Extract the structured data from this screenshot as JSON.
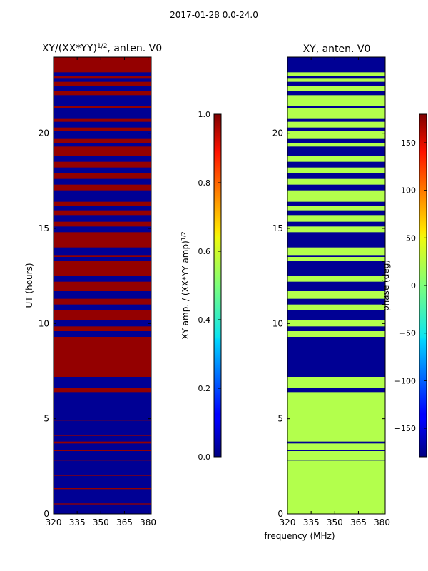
{
  "figure": {
    "suptitle": "2017-01-28 0.0-24.0",
    "xlabel": "frequency (MHz)"
  },
  "chart_data": [
    {
      "type": "heatmap",
      "title": "XY/(XX*YY)",
      "title_superscript": "1/2",
      "title_suffix": ", anten. V0",
      "ylabel": "UT (hours)",
      "xlim": [
        320,
        382
      ],
      "ylim": [
        0,
        24
      ],
      "xticks": [
        320,
        335,
        350,
        365,
        380
      ],
      "yticks": [
        0,
        5,
        10,
        15,
        20
      ],
      "colorbar": {
        "label": "XY amp. / (XX*YY amp)",
        "label_superscript": "1/2",
        "range": [
          0.0,
          1.0
        ],
        "ticks": [
          "0.0",
          "0.2",
          "0.4",
          "0.6",
          "0.8",
          "1.0"
        ],
        "colormap": "jet"
      },
      "background_value": 0.02,
      "bands": [
        {
          "from": 23.2,
          "to": 24.0,
          "value": 0.98
        },
        {
          "from": 22.9,
          "to": 23.0,
          "value": 0.98
        },
        {
          "from": 22.5,
          "to": 22.7,
          "value": 0.98
        },
        {
          "from": 22.0,
          "to": 22.2,
          "value": 0.98
        },
        {
          "from": 21.3,
          "to": 21.45,
          "value": 0.98
        },
        {
          "from": 20.6,
          "to": 20.75,
          "value": 0.98
        },
        {
          "from": 20.1,
          "to": 20.3,
          "value": 0.98
        },
        {
          "from": 19.5,
          "to": 19.7,
          "value": 0.98
        },
        {
          "from": 18.8,
          "to": 19.3,
          "value": 0.98
        },
        {
          "from": 18.2,
          "to": 18.5,
          "value": 0.98
        },
        {
          "from": 17.6,
          "to": 17.9,
          "value": 0.98
        },
        {
          "from": 17.0,
          "to": 17.3,
          "value": 0.98
        },
        {
          "from": 16.2,
          "to": 16.4,
          "value": 0.98
        },
        {
          "from": 15.7,
          "to": 15.95,
          "value": 0.98
        },
        {
          "from": 15.1,
          "to": 15.35,
          "value": 0.98
        },
        {
          "from": 14.0,
          "to": 14.8,
          "value": 0.98
        },
        {
          "from": 13.5,
          "to": 13.6,
          "value": 0.98
        },
        {
          "from": 12.5,
          "to": 13.3,
          "value": 0.98
        },
        {
          "from": 11.7,
          "to": 12.2,
          "value": 0.98
        },
        {
          "from": 11.0,
          "to": 11.3,
          "value": 0.98
        },
        {
          "from": 10.2,
          "to": 10.7,
          "value": 0.98
        },
        {
          "from": 9.6,
          "to": 9.85,
          "value": 0.98
        },
        {
          "from": 7.2,
          "to": 9.3,
          "value": 0.98
        },
        {
          "from": 6.4,
          "to": 6.6,
          "value": 0.98
        },
        {
          "from": 4.9,
          "to": 4.95,
          "value": 0.98
        },
        {
          "from": 4.1,
          "to": 4.15,
          "value": 0.98
        },
        {
          "from": 3.7,
          "to": 3.8,
          "value": 0.98
        },
        {
          "from": 3.3,
          "to": 3.35,
          "value": 0.98
        },
        {
          "from": 2.8,
          "to": 2.85,
          "value": 0.98
        },
        {
          "from": 2.0,
          "to": 2.05,
          "value": 0.98
        },
        {
          "from": 1.3,
          "to": 1.35,
          "value": 0.98
        },
        {
          "from": 0.5,
          "to": 0.55,
          "value": 0.98
        }
      ]
    },
    {
      "type": "heatmap",
      "title": "XY, anten. V0",
      "xlim": [
        320,
        382
      ],
      "ylim": [
        0,
        24
      ],
      "xticks": [
        320,
        335,
        350,
        365,
        380
      ],
      "yticks": [
        0,
        5,
        10,
        15,
        20
      ],
      "colorbar": {
        "label": "phase (deg)",
        "range": [
          -180,
          180
        ],
        "ticks": [
          "−150",
          "−100",
          "−50",
          "0",
          "50",
          "100",
          "150"
        ],
        "colormap": "jet"
      },
      "background_value": 0.55,
      "bands": [
        {
          "from": 23.2,
          "to": 24.0,
          "value": 0.02
        },
        {
          "from": 22.9,
          "to": 23.0,
          "value": 0.02
        },
        {
          "from": 22.5,
          "to": 22.7,
          "value": 0.02
        },
        {
          "from": 22.0,
          "to": 22.2,
          "value": 0.02
        },
        {
          "from": 21.3,
          "to": 21.45,
          "value": 0.02
        },
        {
          "from": 20.6,
          "to": 20.75,
          "value": 0.02
        },
        {
          "from": 20.1,
          "to": 20.3,
          "value": 0.02
        },
        {
          "from": 19.5,
          "to": 19.7,
          "value": 0.02
        },
        {
          "from": 18.8,
          "to": 19.3,
          "value": 0.02
        },
        {
          "from": 18.2,
          "to": 18.5,
          "value": 0.02
        },
        {
          "from": 17.6,
          "to": 17.9,
          "value": 0.02
        },
        {
          "from": 17.0,
          "to": 17.3,
          "value": 0.02
        },
        {
          "from": 16.2,
          "to": 16.4,
          "value": 0.02
        },
        {
          "from": 15.7,
          "to": 15.95,
          "value": 0.02
        },
        {
          "from": 15.1,
          "to": 15.35,
          "value": 0.02
        },
        {
          "from": 14.0,
          "to": 14.8,
          "value": 0.02
        },
        {
          "from": 13.5,
          "to": 13.6,
          "value": 0.02
        },
        {
          "from": 12.5,
          "to": 13.3,
          "value": 0.02
        },
        {
          "from": 11.7,
          "to": 12.2,
          "value": 0.02
        },
        {
          "from": 11.0,
          "to": 11.3,
          "value": 0.02
        },
        {
          "from": 10.2,
          "to": 10.7,
          "value": 0.02
        },
        {
          "from": 9.6,
          "to": 9.85,
          "value": 0.02
        },
        {
          "from": 7.2,
          "to": 9.3,
          "value": 0.02
        },
        {
          "from": 6.4,
          "to": 6.6,
          "value": 0.02
        },
        {
          "from": 3.7,
          "to": 3.8,
          "value": 0.02
        },
        {
          "from": 3.3,
          "to": 3.35,
          "value": 0.02
        },
        {
          "from": 2.8,
          "to": 2.85,
          "value": 0.02
        }
      ]
    }
  ]
}
